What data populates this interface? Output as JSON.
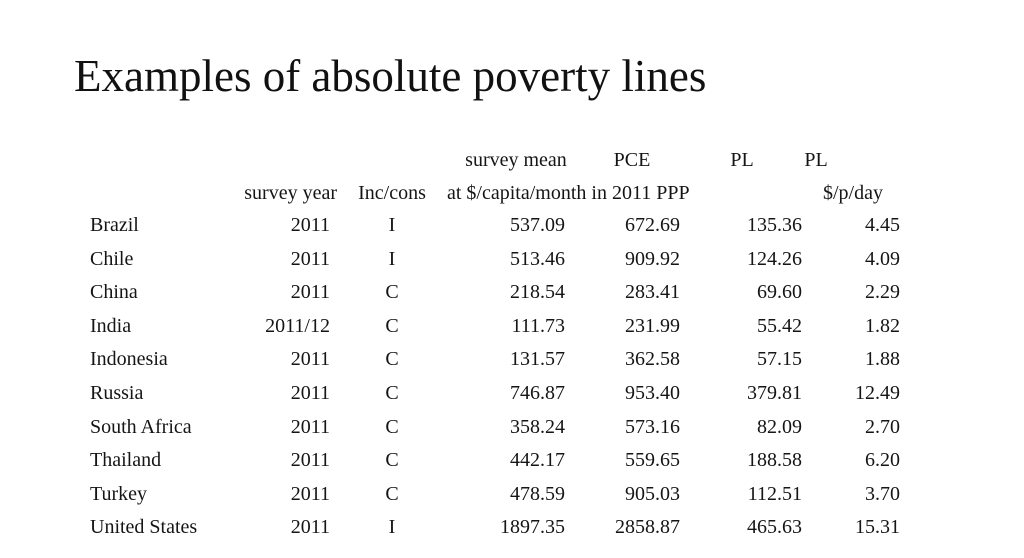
{
  "slide": {
    "title": "Examples of absolute poverty lines",
    "background_color": "#ffffff",
    "text_color": "#151515"
  },
  "table": {
    "header_row1": {
      "survey_mean": "survey mean",
      "pce": "PCE",
      "pl_a": "PL",
      "pl_b": "PL"
    },
    "header_row2": {
      "survey_year": "survey year",
      "inc_cons": "Inc/cons",
      "ppp_units": "at $/capita/month in 2011 PPP",
      "per_day": "$/p/day"
    },
    "rows": [
      {
        "country": "Brazil",
        "year": "2011",
        "inc": "I",
        "mean": "537.09",
        "pce": "672.69",
        "pl": "135.36",
        "day": "4.45"
      },
      {
        "country": "Chile",
        "year": "2011",
        "inc": "I",
        "mean": "513.46",
        "pce": "909.92",
        "pl": "124.26",
        "day": "4.09"
      },
      {
        "country": "China",
        "year": "2011",
        "inc": "C",
        "mean": "218.54",
        "pce": "283.41",
        "pl": "69.60",
        "day": "2.29"
      },
      {
        "country": "India",
        "year": "2011/12",
        "inc": "C",
        "mean": "111.73",
        "pce": "231.99",
        "pl": "55.42",
        "day": "1.82"
      },
      {
        "country": "Indonesia",
        "year": "2011",
        "inc": "C",
        "mean": "131.57",
        "pce": "362.58",
        "pl": "57.15",
        "day": "1.88"
      },
      {
        "country": "Russia",
        "year": "2011",
        "inc": "C",
        "mean": "746.87",
        "pce": "953.40",
        "pl": "379.81",
        "day": "12.49"
      },
      {
        "country": "South Africa",
        "year": "2011",
        "inc": "C",
        "mean": "358.24",
        "pce": "573.16",
        "pl": "82.09",
        "day": "2.70"
      },
      {
        "country": "Thailand",
        "year": "2011",
        "inc": "C",
        "mean": "442.17",
        "pce": "559.65",
        "pl": "188.58",
        "day": "6.20"
      },
      {
        "country": "Turkey",
        "year": "2011",
        "inc": "C",
        "mean": "478.59",
        "pce": "905.03",
        "pl": "112.51",
        "day": "3.70"
      },
      {
        "country": "United States",
        "year": "2011",
        "inc": "I",
        "mean": "1897.35",
        "pce": "2858.87",
        "pl": "465.63",
        "day": "15.31"
      }
    ]
  }
}
